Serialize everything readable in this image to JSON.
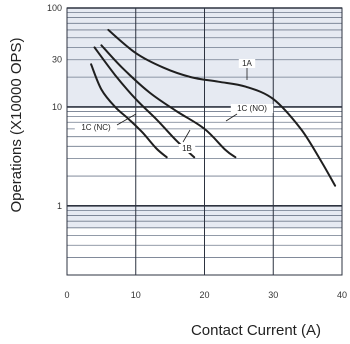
{
  "chart_data": {
    "type": "line",
    "title": "",
    "xlabel": "Contact Current (A)",
    "ylabel": "Operations (X10000 OPS)",
    "xscale": "linear",
    "yscale": "log",
    "xlim": [
      0,
      40
    ],
    "ylim": [
      0.2,
      100
    ],
    "x_ticks": [
      0,
      10,
      20,
      30,
      40
    ],
    "y_ticks": [
      1,
      10,
      30,
      100
    ],
    "grid": true,
    "background_bands": [
      {
        "y_from": 10,
        "y_to": 100,
        "color": "#e6eaf2"
      },
      {
        "y_from": 0.6,
        "y_to": 1,
        "color": "#e6eaf2"
      }
    ],
    "series": [
      {
        "name": "1A",
        "x": [
          6,
          10,
          14,
          18,
          22,
          26,
          30,
          34,
          37,
          39
        ],
        "y": [
          60,
          35,
          25,
          20,
          18,
          16,
          12,
          6,
          2.8,
          1.6
        ]
      },
      {
        "name": "1C (NO)",
        "x": [
          5,
          8,
          12,
          16,
          20,
          23,
          24.5
        ],
        "y": [
          42,
          25,
          14,
          9,
          6,
          3.7,
          3.1
        ]
      },
      {
        "name": "1B",
        "x": [
          4,
          7,
          10,
          13,
          16,
          18.5
        ],
        "y": [
          40,
          21,
          12,
          7.5,
          4.5,
          3.1
        ]
      },
      {
        "name": "1C (NC)",
        "x": [
          3.5,
          5,
          7,
          9,
          11,
          13,
          14.5
        ],
        "y": [
          27,
          15,
          10,
          7.5,
          5.5,
          3.8,
          3.1
        ]
      }
    ],
    "annotations": [
      {
        "text": "1A",
        "series": "1A"
      },
      {
        "text": "1C (NO)",
        "series": "1C (NO)"
      },
      {
        "text": "1B",
        "series": "1B"
      },
      {
        "text": "1C (NC)",
        "series": "1C (NC)"
      }
    ],
    "colors": {
      "band": "#e6eaf2",
      "grid_major": "#2d3340",
      "grid_minor": "#6f7a8c",
      "curve": "#1f1f1f",
      "tick_text": "#333333"
    }
  }
}
